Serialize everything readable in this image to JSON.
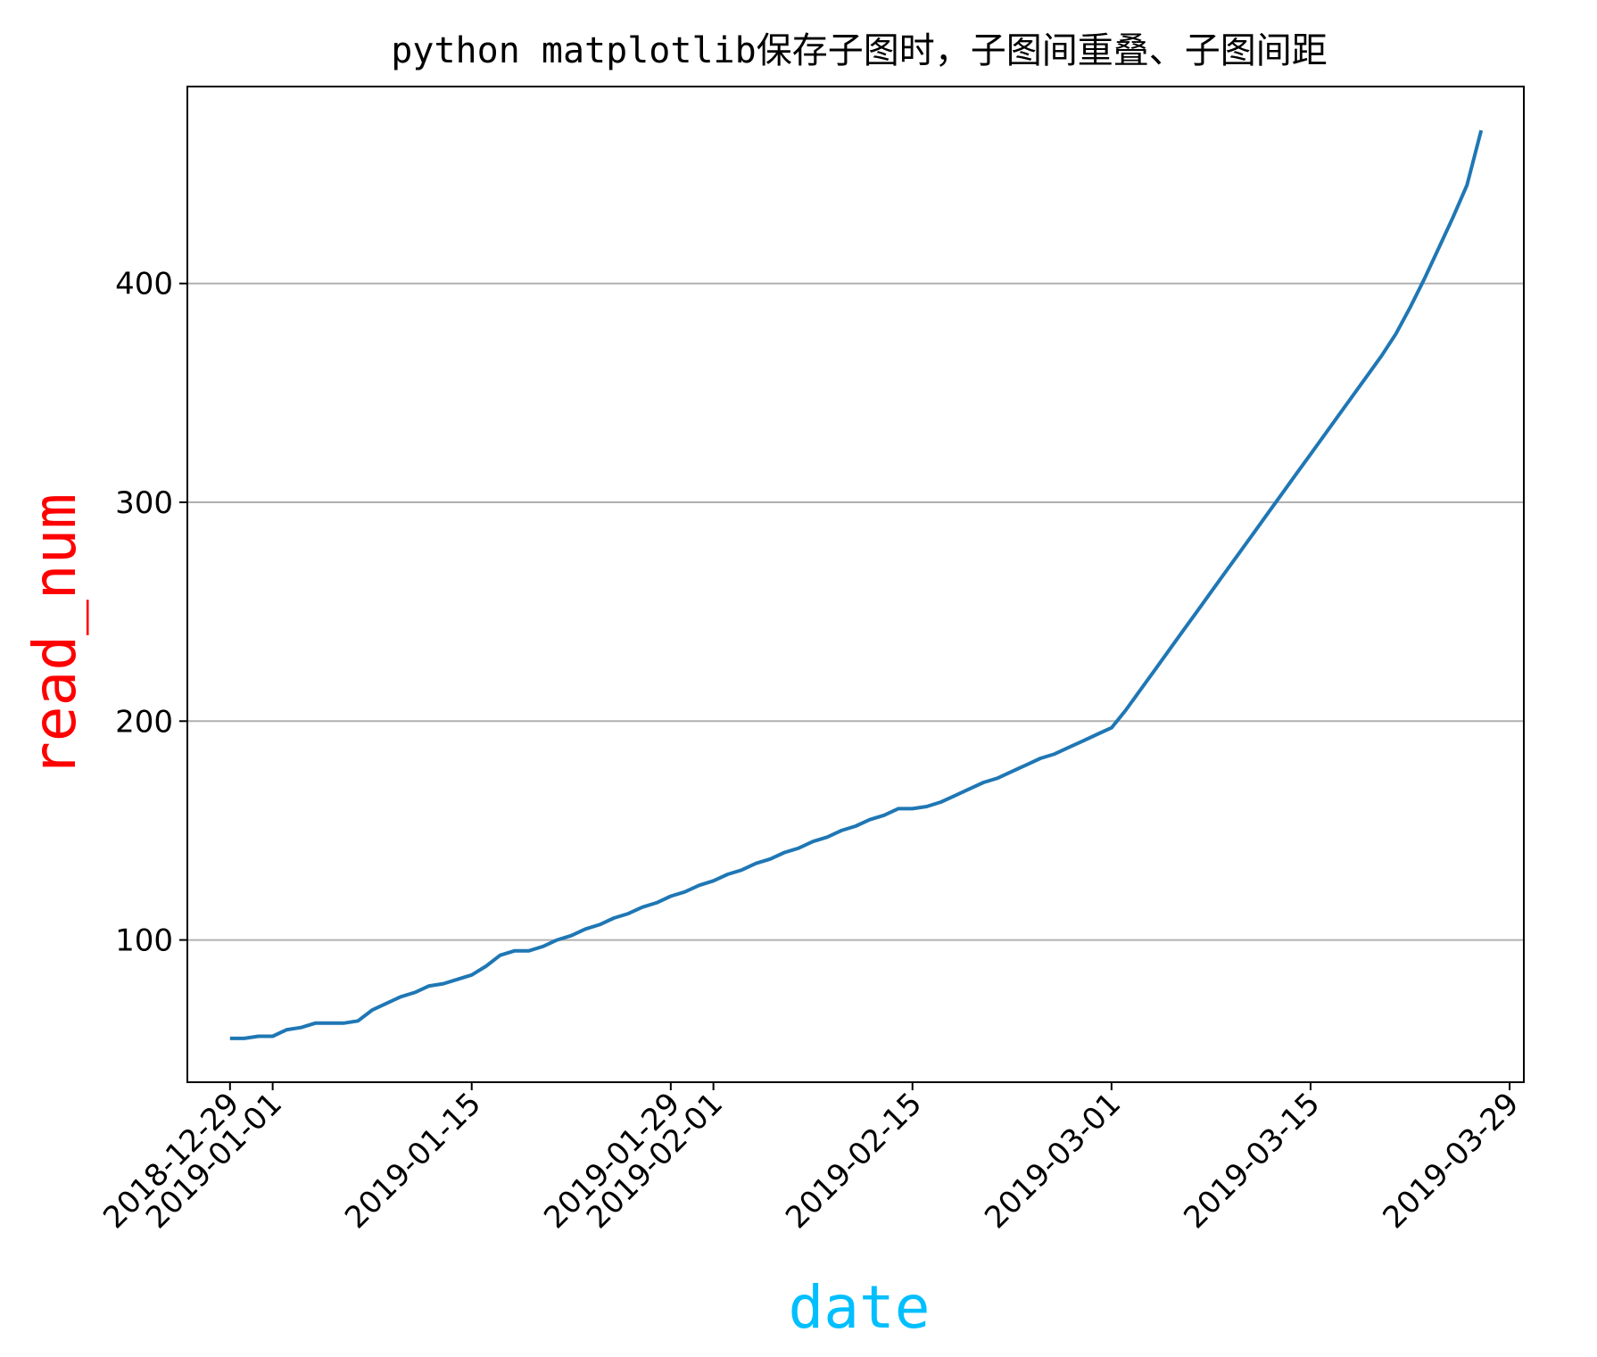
{
  "chart_data": {
    "type": "line",
    "title": "python matplotlib保存子图时，子图间重叠、子图间距",
    "xlabel": "date",
    "ylabel": "read_num",
    "xlabel_color": "#00BFFF",
    "ylabel_color": "#FF0000",
    "line_color": "#1f77b4",
    "grid": "horizontal",
    "grid_color": "#b0b0b0",
    "x_axis_type": "date",
    "xlim": [
      "2018-12-26",
      "2019-03-30"
    ],
    "ylim": [
      35,
      490
    ],
    "x_ticks": [
      "2018-12-29",
      "2019-01-01",
      "2019-01-15",
      "2019-01-29",
      "2019-02-01",
      "2019-02-15",
      "2019-03-01",
      "2019-03-15",
      "2019-03-29"
    ],
    "x_tick_labels": [
      "2018-12-29",
      "2019-01-01",
      "2019-01-15",
      "2019-01-29",
      "2019-02-01",
      "2019-02-15",
      "2019-03-01",
      "2019-03-15",
      "2019-03-29"
    ],
    "y_ticks": [
      100,
      200,
      300,
      400
    ],
    "y_tick_labels": [
      "100",
      "200",
      "300",
      "400"
    ],
    "series": [
      {
        "x": [
          "2018-12-29",
          "2018-12-30",
          "2018-12-31",
          "2019-01-01",
          "2019-01-02",
          "2019-01-03",
          "2019-01-04",
          "2019-01-05",
          "2019-01-06",
          "2019-01-07",
          "2019-01-08",
          "2019-01-09",
          "2019-01-10",
          "2019-01-11",
          "2019-01-12",
          "2019-01-13",
          "2019-01-14",
          "2019-01-15",
          "2019-01-16",
          "2019-01-17",
          "2019-01-18",
          "2019-01-19",
          "2019-01-20",
          "2019-01-21",
          "2019-01-22",
          "2019-01-23",
          "2019-01-24",
          "2019-01-25",
          "2019-01-26",
          "2019-01-27",
          "2019-01-28",
          "2019-01-29",
          "2019-01-30",
          "2019-01-31",
          "2019-02-01",
          "2019-02-02",
          "2019-02-03",
          "2019-02-04",
          "2019-02-05",
          "2019-02-06",
          "2019-02-07",
          "2019-02-08",
          "2019-02-09",
          "2019-02-10",
          "2019-02-11",
          "2019-02-12",
          "2019-02-13",
          "2019-02-14",
          "2019-02-15",
          "2019-02-16",
          "2019-02-17",
          "2019-02-18",
          "2019-02-19",
          "2019-02-20",
          "2019-02-21",
          "2019-02-22",
          "2019-02-23",
          "2019-02-24",
          "2019-02-25",
          "2019-02-26",
          "2019-02-27",
          "2019-02-28",
          "2019-03-01",
          "2019-03-02",
          "2019-03-03",
          "2019-03-04",
          "2019-03-05",
          "2019-03-06",
          "2019-03-07",
          "2019-03-08",
          "2019-03-09",
          "2019-03-10",
          "2019-03-11",
          "2019-03-12",
          "2019-03-13",
          "2019-03-14",
          "2019-03-15",
          "2019-03-16",
          "2019-03-17",
          "2019-03-18",
          "2019-03-19",
          "2019-03-20",
          "2019-03-21",
          "2019-03-22",
          "2019-03-23",
          "2019-03-24",
          "2019-03-25",
          "2019-03-26",
          "2019-03-27"
        ],
        "y": [
          55,
          55,
          56,
          56,
          59,
          60,
          62,
          62,
          62,
          63,
          68,
          71,
          74,
          76,
          79,
          80,
          82,
          84,
          88,
          93,
          95,
          95,
          97,
          100,
          102,
          105,
          107,
          110,
          112,
          115,
          117,
          120,
          122,
          125,
          127,
          130,
          132,
          135,
          137,
          140,
          142,
          145,
          147,
          150,
          152,
          155,
          157,
          160,
          160,
          161,
          163,
          166,
          169,
          172,
          174,
          177,
          180,
          183,
          185,
          188,
          191,
          194,
          197,
          205,
          214,
          223,
          232,
          241,
          250,
          259,
          268,
          277,
          286,
          295,
          304,
          313,
          322,
          331,
          340,
          349,
          358,
          367,
          377,
          389,
          402,
          416,
          430,
          445,
          470
        ]
      }
    ]
  }
}
